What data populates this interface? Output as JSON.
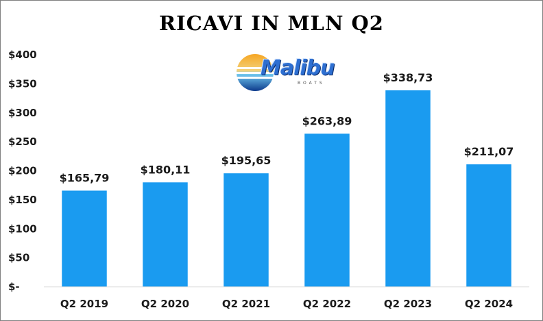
{
  "chart_data": {
    "type": "bar",
    "title": "RICAVI IN MLN Q2",
    "categories": [
      "Q2 2019",
      "Q2 2020",
      "Q2 2021",
      "Q2 2022",
      "Q2 2023",
      "Q2 2024"
    ],
    "values": [
      165.79,
      180.11,
      195.65,
      263.89,
      338.73,
      211.07
    ],
    "data_labels": [
      "$165,79",
      "$180,11",
      "$195,65",
      "$263,89",
      "$338,73",
      "$211,07"
    ],
    "ylim": [
      0,
      400
    ],
    "yticks": [
      0,
      50,
      100,
      150,
      200,
      250,
      300,
      350,
      400
    ],
    "ytick_labels": [
      "$-",
      "$50",
      "$100",
      "$150",
      "$200",
      "$250",
      "$300",
      "$350",
      "$400"
    ],
    "xlabel": "",
    "ylabel": "",
    "grid": false,
    "legend": "none",
    "bar_color": "#1a9bf0"
  },
  "logo": {
    "brand": "Malibu",
    "sub": "BOATS"
  }
}
